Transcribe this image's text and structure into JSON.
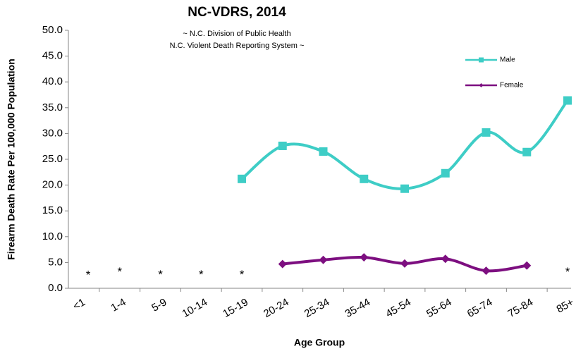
{
  "chart_data": {
    "type": "line",
    "title": "NC-VDRS, 2014",
    "subtitle": [
      "~ N.C. Division of Public Health",
      "N.C. Violent Death Reporting System ~"
    ],
    "x_label": "Age Group",
    "y_label": "Firearm Death  Rate Per 100,000 Population",
    "categories": [
      "<1",
      "1-4",
      "5-9",
      "10-14",
      "15-19",
      "20-24",
      "25-34",
      "35-44",
      "45-54",
      "55-64",
      "65-74",
      "75-84",
      "85+"
    ],
    "series": [
      {
        "name": "Male",
        "color": "#3ecdc6",
        "marker": "square",
        "values": [
          null,
          null,
          null,
          null,
          21.2,
          27.6,
          26.5,
          21.2,
          19.3,
          22.3,
          30.2,
          26.4,
          36.4
        ]
      },
      {
        "name": "Female",
        "color": "#7d0f80",
        "marker": "diamond",
        "values": [
          null,
          null,
          null,
          null,
          null,
          4.7,
          5.5,
          6.0,
          4.8,
          5.7,
          3.4,
          4.4,
          null
        ]
      }
    ],
    "annotations": [
      {
        "text": "*",
        "category": 0,
        "y": 3.0
      },
      {
        "text": "*",
        "category": 1,
        "y": 3.6
      },
      {
        "text": "*",
        "category": 2,
        "y": 3.1
      },
      {
        "text": "*",
        "category": 3,
        "y": 3.1
      },
      {
        "text": "*",
        "category": 4,
        "y": 3.1
      },
      {
        "text": "*",
        "category": 12,
        "y": 3.6
      }
    ],
    "ylim": [
      0,
      50
    ],
    "yticks": [
      {
        "value": 0,
        "label": "0.0"
      },
      {
        "value": 5,
        "label": "5.0"
      },
      {
        "value": 10,
        "label": "10.0"
      },
      {
        "value": 15,
        "label": "15.0"
      },
      {
        "value": 20,
        "label": "20.0"
      },
      {
        "value": 25,
        "label": "25.0"
      },
      {
        "value": 30,
        "label": "30.0"
      },
      {
        "value": 35,
        "label": "35.0"
      },
      {
        "value": 40,
        "label": "40.0"
      },
      {
        "value": 45,
        "label": "45.0"
      },
      {
        "value": 50,
        "label": "50.0"
      }
    ],
    "smooth": true,
    "legend": "top-right"
  }
}
